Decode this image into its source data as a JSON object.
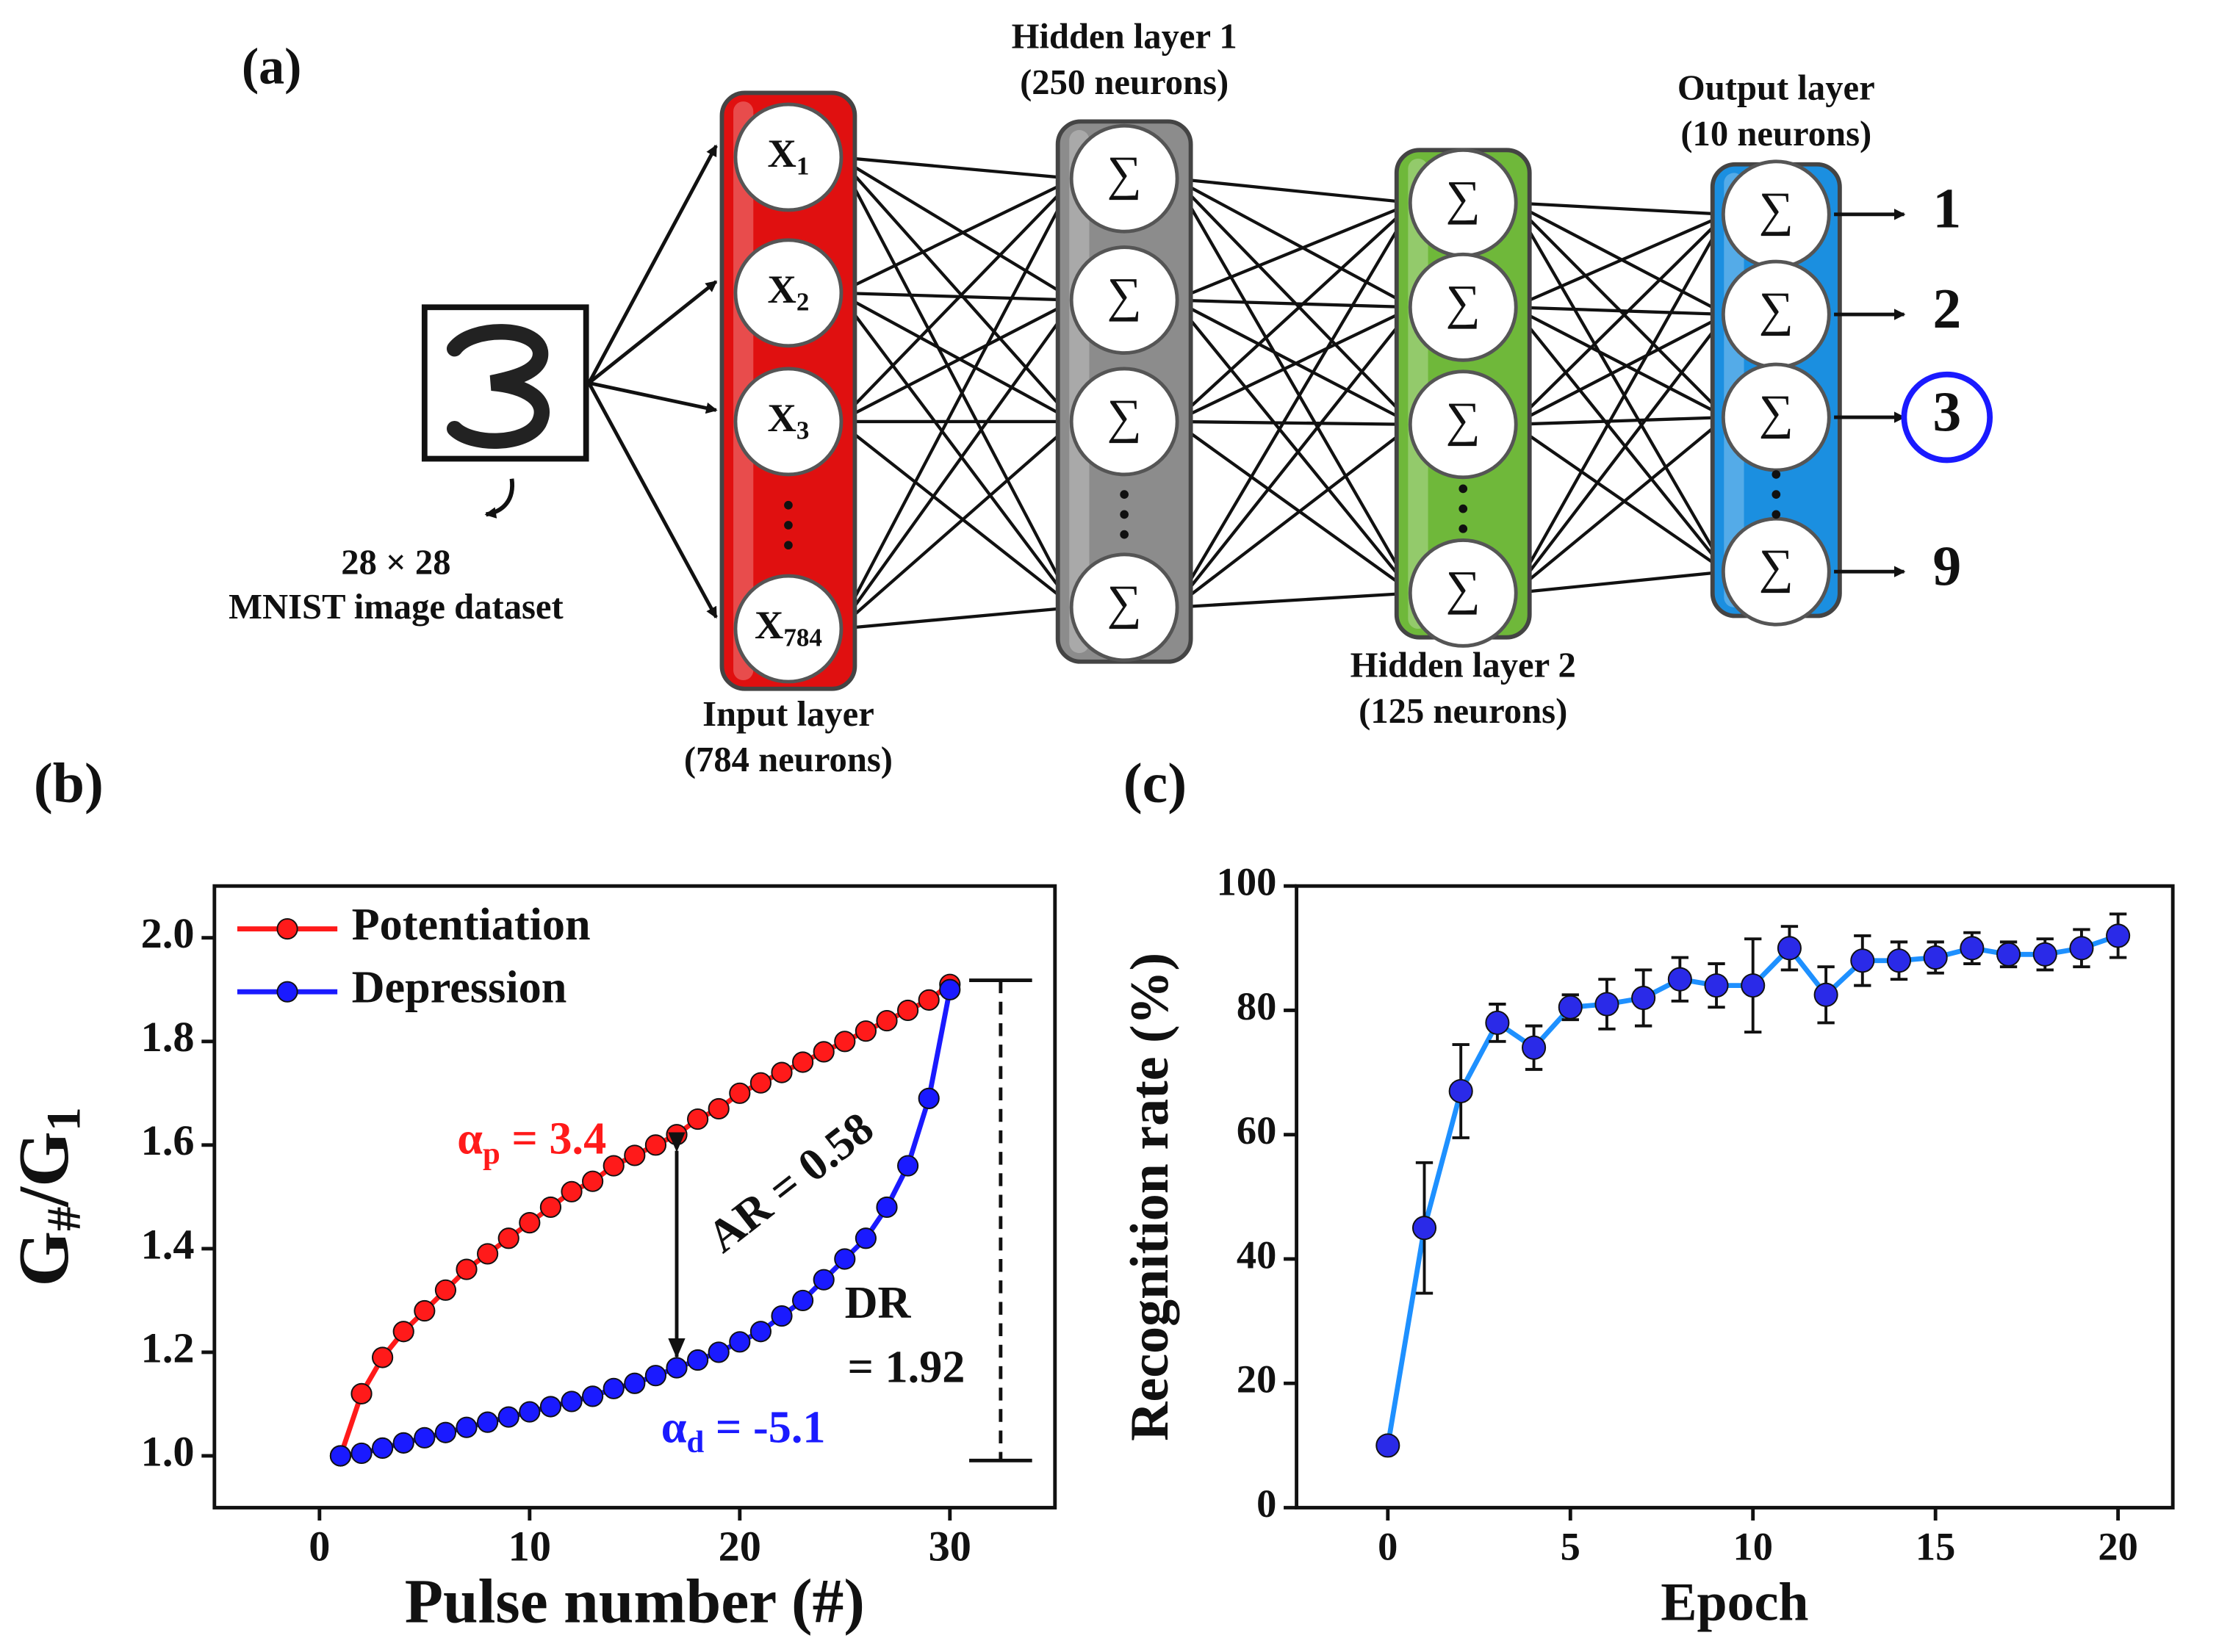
{
  "diagram": {
    "label": "(a)",
    "image_caption": [
      "28 × 28",
      "MNIST image dataset"
    ],
    "layers": [
      {
        "title": [
          "Input layer",
          "(784 neurons)"
        ],
        "color": "#e01010",
        "nodes": [
          {
            "base": "X",
            "sub": "1"
          },
          {
            "base": "X",
            "sub": "2"
          },
          {
            "base": "X",
            "sub": "3"
          },
          {
            "base": "X",
            "sub": "784"
          }
        ]
      },
      {
        "title": [
          "Hidden layer 1",
          "(250 neurons)"
        ],
        "color": "#8c8c8c",
        "nodes": [
          {
            "base": "∑"
          },
          {
            "base": "∑"
          },
          {
            "base": "∑"
          },
          {
            "base": "∑"
          }
        ]
      },
      {
        "title": [
          "Hidden layer 2",
          "(125 neurons)"
        ],
        "color": "#6fb83a",
        "nodes": [
          {
            "base": "∑"
          },
          {
            "base": "∑"
          },
          {
            "base": "∑"
          },
          {
            "base": "∑"
          }
        ]
      },
      {
        "title": [
          "Output layer",
          "(10 neurons)"
        ],
        "color": "#1b8fe0",
        "nodes": [
          {
            "base": "∑"
          },
          {
            "base": "∑"
          },
          {
            "base": "∑"
          },
          {
            "base": "∑"
          }
        ]
      }
    ],
    "outputs": [
      "1",
      "2",
      "3",
      "9"
    ]
  },
  "chart_data": [
    {
      "type": "line",
      "label": "(b)",
      "xlabel": "Pulse number (#)",
      "ylabel_parts": [
        "G",
        "#",
        "/G",
        "1"
      ],
      "x": [
        1,
        2,
        3,
        4,
        5,
        6,
        7,
        8,
        9,
        10,
        11,
        12,
        13,
        14,
        15,
        16,
        17,
        18,
        19,
        20,
        21,
        22,
        23,
        24,
        25,
        26,
        27,
        28,
        29,
        30
      ],
      "series": [
        {
          "name": "Potentiation",
          "color": "#ff1a1a",
          "values": [
            1.0,
            1.12,
            1.19,
            1.24,
            1.28,
            1.32,
            1.36,
            1.39,
            1.42,
            1.45,
            1.48,
            1.51,
            1.53,
            1.56,
            1.58,
            1.6,
            1.62,
            1.65,
            1.67,
            1.7,
            1.72,
            1.74,
            1.76,
            1.78,
            1.8,
            1.82,
            1.84,
            1.86,
            1.88,
            1.91
          ]
        },
        {
          "name": "Depression",
          "color": "#1a1aff",
          "values": [
            1.0,
            1.005,
            1.015,
            1.025,
            1.035,
            1.045,
            1.055,
            1.065,
            1.075,
            1.085,
            1.095,
            1.105,
            1.115,
            1.13,
            1.14,
            1.155,
            1.17,
            1.185,
            1.2,
            1.22,
            1.24,
            1.27,
            1.3,
            1.34,
            1.38,
            1.42,
            1.48,
            1.56,
            1.69,
            1.9
          ]
        }
      ],
      "xlim": [
        -5,
        35
      ],
      "xticks": [
        0,
        10,
        20,
        30
      ],
      "ylim": [
        0.9,
        2.1
      ],
      "yticks": [
        {
          "value": 1,
          "label": "1.0"
        },
        1.2,
        1.4,
        1.6,
        1.8,
        {
          "value": 2,
          "label": "2.0"
        }
      ],
      "legend": "upper left",
      "annotations": [
        {
          "parts": [
            "α",
            "p",
            " = 3.4"
          ],
          "color": "#ff1a1a"
        },
        {
          "parts": [
            "α",
            "d",
            " = -5.1"
          ],
          "color": "#1a1aff"
        },
        {
          "parts": [
            "AR = 0.58"
          ],
          "color": "#111111"
        },
        {
          "parts": [
            "DR"
          ],
          "color": "#111111"
        },
        {
          "parts": [
            "= 1.92"
          ],
          "color": "#111111"
        }
      ]
    },
    {
      "type": "line",
      "label": "(c)",
      "xlabel": "Epoch",
      "ylabel": "Recognition rate (%)",
      "x": [
        0,
        1,
        2,
        3,
        4,
        5,
        6,
        7,
        8,
        9,
        10,
        11,
        12,
        13,
        14,
        15,
        16,
        17,
        18,
        19,
        20
      ],
      "series": [
        {
          "color": "#1e90ff",
          "marker_color": "#2a2ae8",
          "values": [
            10,
            45,
            67,
            78,
            74,
            80.5,
            81,
            82,
            85,
            84,
            84,
            90,
            82.5,
            88,
            88,
            88.5,
            90,
            89,
            89,
            90,
            92
          ],
          "errors": [
            0.5,
            10.5,
            7.5,
            3,
            3.5,
            2,
            4,
            4.5,
            3.5,
            3.5,
            7.5,
            3.5,
            4.5,
            4,
            3,
            2.5,
            2.5,
            2,
            2.5,
            3,
            3.5
          ]
        }
      ],
      "xlim": [
        -2.5,
        21.5
      ],
      "xticks": [
        0,
        5,
        10,
        15,
        20
      ],
      "ylim": [
        0,
        100
      ],
      "yticks": [
        0,
        20,
        40,
        60,
        80,
        100
      ]
    }
  ]
}
